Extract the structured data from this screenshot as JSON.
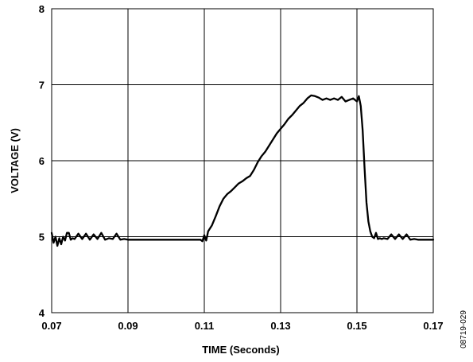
{
  "chart_data": {
    "type": "line",
    "title": "",
    "xlabel": "TIME (Seconds)",
    "ylabel": "VOLTAGE (V)",
    "xlim": [
      0.07,
      0.17
    ],
    "ylim": [
      4,
      8
    ],
    "x_ticks": [
      "0.07",
      "0.09",
      "0.11",
      "0.13",
      "0.15",
      "0.17"
    ],
    "y_ticks": [
      "4",
      "5",
      "6",
      "7",
      "8"
    ],
    "grid": true,
    "legend": "none",
    "line_color": "#000000",
    "series": [
      {
        "x": [
          0.07,
          0.0705,
          0.071,
          0.0715,
          0.072,
          0.0725,
          0.073,
          0.0735,
          0.074,
          0.0745,
          0.075,
          0.0755,
          0.076,
          0.077,
          0.078,
          0.079,
          0.08,
          0.081,
          0.082,
          0.083,
          0.084,
          0.085,
          0.086,
          0.087,
          0.088,
          0.089,
          0.09,
          0.091,
          0.092,
          0.093,
          0.094,
          0.095,
          0.096,
          0.097,
          0.098,
          0.099,
          0.1,
          0.101,
          0.102,
          0.103,
          0.104,
          0.105,
          0.106,
          0.107,
          0.108,
          0.109,
          0.1095,
          0.11,
          0.1105,
          0.111,
          0.112,
          0.113,
          0.114,
          0.115,
          0.116,
          0.117,
          0.118,
          0.119,
          0.12,
          0.121,
          0.122,
          0.123,
          0.124,
          0.125,
          0.126,
          0.127,
          0.128,
          0.129,
          0.13,
          0.131,
          0.132,
          0.133,
          0.134,
          0.135,
          0.136,
          0.137,
          0.138,
          0.139,
          0.14,
          0.141,
          0.142,
          0.143,
          0.144,
          0.145,
          0.146,
          0.147,
          0.148,
          0.149,
          0.15,
          0.1505,
          0.151,
          0.1515,
          0.152,
          0.1525,
          0.153,
          0.1535,
          0.154,
          0.1545,
          0.155,
          0.1555,
          0.156,
          0.1565,
          0.157,
          0.158,
          0.159,
          0.16,
          0.161,
          0.162,
          0.163,
          0.164,
          0.165,
          0.166,
          0.167,
          0.168,
          0.169,
          0.17
        ],
        "y": [
          5.05,
          4.92,
          5.0,
          4.88,
          4.98,
          4.9,
          5.0,
          4.95,
          5.05,
          5.05,
          4.96,
          4.98,
          4.97,
          5.04,
          4.97,
          5.04,
          4.96,
          5.03,
          4.97,
          5.05,
          4.96,
          4.98,
          4.97,
          5.04,
          4.96,
          4.97,
          4.96,
          4.96,
          4.96,
          4.96,
          4.96,
          4.96,
          4.96,
          4.96,
          4.96,
          4.96,
          4.96,
          4.96,
          4.96,
          4.96,
          4.96,
          4.96,
          4.96,
          4.96,
          4.96,
          4.96,
          4.94,
          5.02,
          4.95,
          5.07,
          5.15,
          5.27,
          5.4,
          5.5,
          5.56,
          5.6,
          5.65,
          5.7,
          5.73,
          5.77,
          5.8,
          5.88,
          5.98,
          6.06,
          6.12,
          6.2,
          6.28,
          6.36,
          6.42,
          6.48,
          6.55,
          6.6,
          6.66,
          6.72,
          6.76,
          6.82,
          6.86,
          6.85,
          6.83,
          6.8,
          6.82,
          6.8,
          6.82,
          6.8,
          6.84,
          6.78,
          6.8,
          6.82,
          6.78,
          6.85,
          6.72,
          6.4,
          5.9,
          5.45,
          5.2,
          5.07,
          5.0,
          4.98,
          5.05,
          4.97,
          4.98,
          4.97,
          4.98,
          4.97,
          5.03,
          4.97,
          5.03,
          4.97,
          5.03,
          4.96,
          4.97,
          4.96,
          4.96,
          4.96,
          4.96,
          4.96
        ]
      }
    ]
  },
  "figure_id": "08719-029"
}
